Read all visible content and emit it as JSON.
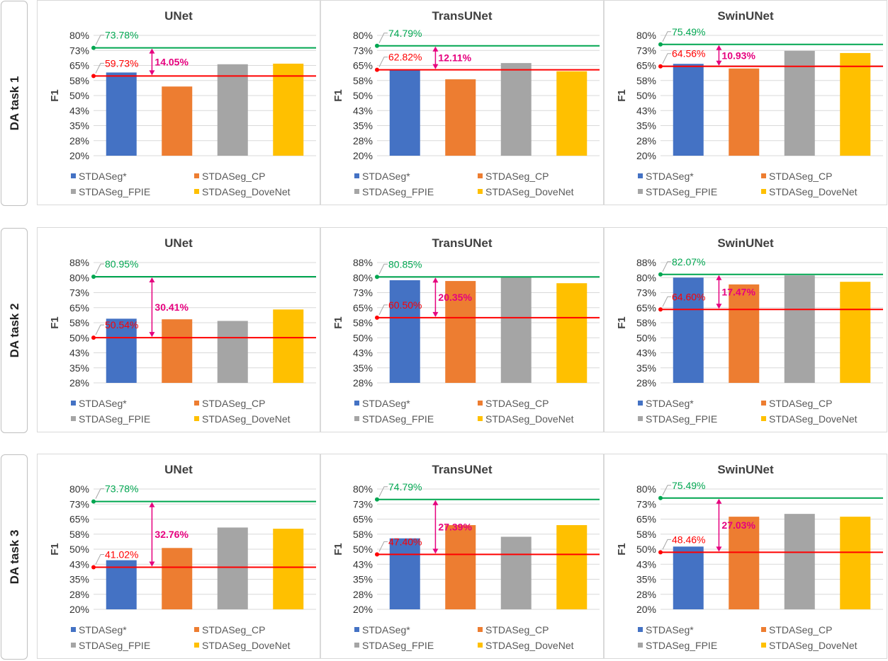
{
  "rows": [
    {
      "label": "DA task 1"
    },
    {
      "label": "DA task 2"
    },
    {
      "label": "DA task 3"
    }
  ],
  "colors": {
    "STDASeg*": "#4472c4",
    "STDASeg_CP": "#ed7d31",
    "STDASeg_FPIE": "#a5a5a5",
    "STDASeg_DoveNet": "#ffc000",
    "upper_line": "#00a650",
    "lower_line": "#ff0000",
    "gap": "#e6007e"
  },
  "legend": [
    "STDASeg*",
    "STDASeg_CP",
    "STDASeg_FPIE",
    "STDASeg_DoveNet"
  ],
  "chart_data": [
    {
      "type": "bar",
      "row": 0,
      "col": 0,
      "title": "UNet",
      "ylabel": "F1",
      "categories": [
        "STDASeg*",
        "STDASeg_CP",
        "STDASeg_FPIE",
        "STDASeg_DoveNet"
      ],
      "values": [
        61.5,
        54.5,
        65.6,
        65.9
      ],
      "yticks": [
        "80%",
        "73%",
        "65%",
        "58%",
        "50%",
        "43%",
        "35%",
        "28%",
        "20%"
      ],
      "ylim": [
        20,
        80
      ],
      "upper": {
        "value": 73.78,
        "label": "73.78%"
      },
      "lower": {
        "value": 59.73,
        "label": "59.73%"
      },
      "gap_label": "14.05%"
    },
    {
      "type": "bar",
      "row": 0,
      "col": 1,
      "title": "TransUNet",
      "ylabel": "F1",
      "categories": [
        "STDASeg*",
        "STDASeg_CP",
        "STDASeg_FPIE",
        "STDASeg_DoveNet"
      ],
      "values": [
        62.8,
        58.1,
        66.2,
        62.1
      ],
      "yticks": [
        "80%",
        "73%",
        "65%",
        "58%",
        "50%",
        "43%",
        "35%",
        "28%",
        "20%"
      ],
      "ylim": [
        20,
        80
      ],
      "upper": {
        "value": 74.79,
        "label": "74.79%"
      },
      "lower": {
        "value": 62.82,
        "label": "62.82%"
      },
      "gap_label": "12.11%"
    },
    {
      "type": "bar",
      "row": 0,
      "col": 2,
      "title": "SwinUNet",
      "ylabel": "F1",
      "categories": [
        "STDASeg*",
        "STDASeg_CP",
        "STDASeg_FPIE",
        "STDASeg_DoveNet"
      ],
      "values": [
        65.8,
        63.5,
        72.3,
        71.2
      ],
      "yticks": [
        "80%",
        "73%",
        "65%",
        "58%",
        "50%",
        "43%",
        "35%",
        "28%",
        "20%"
      ],
      "ylim": [
        20,
        80
      ],
      "upper": {
        "value": 75.49,
        "label": "75.49%"
      },
      "lower": {
        "value": 64.56,
        "label": "64.56%"
      },
      "gap_label": "10.93%"
    },
    {
      "type": "bar",
      "row": 1,
      "col": 0,
      "title": "UNet",
      "ylabel": "F1",
      "categories": [
        "STDASeg*",
        "STDASeg_CP",
        "STDASeg_FPIE",
        "STDASeg_DoveNet"
      ],
      "values": [
        60.0,
        59.7,
        58.9,
        64.6
      ],
      "yticks": [
        "88%",
        "80%",
        "73%",
        "65%",
        "58%",
        "50%",
        "43%",
        "35%",
        "28%"
      ],
      "ylim": [
        28,
        88
      ],
      "upper": {
        "value": 80.95,
        "label": "80.95%"
      },
      "lower": {
        "value": 50.54,
        "label": "50.54%"
      },
      "gap_label": "30.41%"
    },
    {
      "type": "bar",
      "row": 1,
      "col": 1,
      "title": "TransUNet",
      "ylabel": "F1",
      "categories": [
        "STDASeg*",
        "STDASeg_CP",
        "STDASeg_FPIE",
        "STDASeg_DoveNet"
      ],
      "values": [
        79.2,
        78.8,
        81.0,
        77.7
      ],
      "yticks": [
        "88%",
        "80%",
        "73%",
        "65%",
        "58%",
        "50%",
        "43%",
        "35%",
        "28%"
      ],
      "ylim": [
        28,
        88
      ],
      "upper": {
        "value": 80.85,
        "label": "80.85%"
      },
      "lower": {
        "value": 60.5,
        "label": "60.50%"
      },
      "gap_label": "20.35%"
    },
    {
      "type": "bar",
      "row": 1,
      "col": 2,
      "title": "SwinUNet",
      "ylabel": "F1",
      "categories": [
        "STDASeg*",
        "STDASeg_CP",
        "STDASeg_FPIE",
        "STDASeg_DoveNet"
      ],
      "values": [
        80.5,
        77.1,
        81.6,
        78.4
      ],
      "yticks": [
        "88%",
        "80%",
        "73%",
        "65%",
        "58%",
        "50%",
        "43%",
        "35%",
        "28%"
      ],
      "ylim": [
        28,
        88
      ],
      "upper": {
        "value": 82.07,
        "label": "82.07%"
      },
      "lower": {
        "value": 64.6,
        "label": "64.60%"
      },
      "gap_label": "17.47%"
    },
    {
      "type": "bar",
      "row": 2,
      "col": 0,
      "title": "UNet",
      "ylabel": "F1",
      "categories": [
        "STDASeg*",
        "STDASeg_CP",
        "STDASeg_FPIE",
        "STDASeg_DoveNet"
      ],
      "values": [
        44.5,
        50.6,
        60.8,
        60.2
      ],
      "yticks": [
        "80%",
        "73%",
        "65%",
        "58%",
        "50%",
        "43%",
        "35%",
        "28%",
        "20%"
      ],
      "ylim": [
        20,
        80
      ],
      "upper": {
        "value": 73.78,
        "label": "73.78%"
      },
      "lower": {
        "value": 41.02,
        "label": "41.02%"
      },
      "gap_label": "32.76%"
    },
    {
      "type": "bar",
      "row": 2,
      "col": 1,
      "title": "TransUNet",
      "ylabel": "F1",
      "categories": [
        "STDASeg*",
        "STDASeg_CP",
        "STDASeg_FPIE",
        "STDASeg_DoveNet"
      ],
      "values": [
        55.4,
        62.0,
        56.2,
        62.0
      ],
      "yticks": [
        "80%",
        "73%",
        "65%",
        "58%",
        "50%",
        "43%",
        "35%",
        "28%",
        "20%"
      ],
      "ylim": [
        20,
        80
      ],
      "upper": {
        "value": 74.79,
        "label": "74.79%"
      },
      "lower": {
        "value": 47.4,
        "label": "47.40%"
      },
      "gap_label": "27.39%"
    },
    {
      "type": "bar",
      "row": 2,
      "col": 2,
      "title": "SwinUNet",
      "ylabel": "F1",
      "categories": [
        "STDASeg*",
        "STDASeg_CP",
        "STDASeg_FPIE",
        "STDASeg_DoveNet"
      ],
      "values": [
        51.3,
        66.2,
        67.6,
        66.2
      ],
      "yticks": [
        "80%",
        "73%",
        "65%",
        "58%",
        "50%",
        "43%",
        "35%",
        "28%",
        "20%"
      ],
      "ylim": [
        20,
        80
      ],
      "upper": {
        "value": 75.49,
        "label": "75.49%"
      },
      "lower": {
        "value": 48.46,
        "label": "48.46%"
      },
      "gap_label": "27.03%"
    }
  ]
}
